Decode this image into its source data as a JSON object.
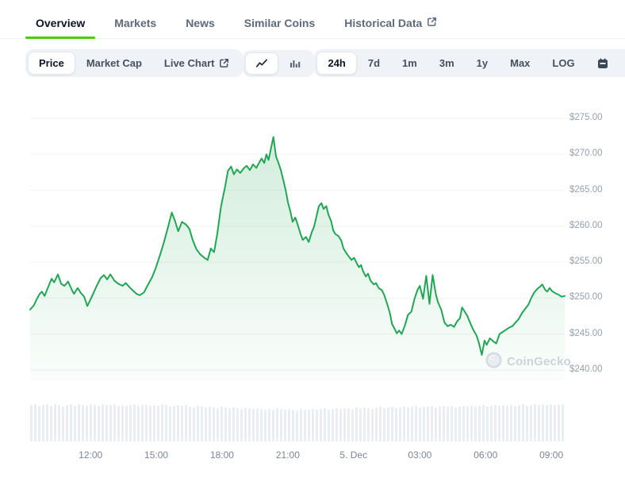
{
  "colors": {
    "accent_underline": "#4bcc00",
    "line_green": "#21a654",
    "volume_bar": "#eaeef3",
    "active_text": "#0c1322",
    "inactive_text": "#5d6a7a"
  },
  "tabs": {
    "items": [
      {
        "label": "Overview",
        "active": true
      },
      {
        "label": "Markets",
        "active": false
      },
      {
        "label": "News",
        "active": false
      },
      {
        "label": "Similar Coins",
        "active": false
      },
      {
        "label": "Historical Data",
        "active": false,
        "icon": "external-link-icon"
      }
    ]
  },
  "toolbar": {
    "metric_group": [
      {
        "label": "Price",
        "active": true
      },
      {
        "label": "Market Cap",
        "active": false
      },
      {
        "label": "Live Chart",
        "active": false,
        "icon": "external-link-icon"
      }
    ],
    "chart_type_group": [
      {
        "icon": "line-chart-icon",
        "active": true
      },
      {
        "icon": "bar-chart-icon",
        "active": false
      }
    ],
    "range_group": [
      {
        "label": "24h",
        "active": true
      },
      {
        "label": "7d",
        "active": false
      },
      {
        "label": "1m",
        "active": false
      },
      {
        "label": "3m",
        "active": false
      },
      {
        "label": "1y",
        "active": false
      },
      {
        "label": "Max",
        "active": false
      },
      {
        "label": "LOG",
        "active": false
      }
    ],
    "action_icons": [
      "calendar-icon",
      "download-icon",
      "expand-icon"
    ]
  },
  "watermark": {
    "text": "CoinGecko"
  },
  "chart_data": {
    "type": "line",
    "currency": "USD",
    "range_selected": "24h",
    "ylim": [
      240,
      275
    ],
    "grid_step": 5,
    "grid": true,
    "line_color": "#21a654",
    "y_ticks": [
      "$275.00",
      "$270.00",
      "$265.00",
      "$260.00",
      "$255.00",
      "$250.00",
      "$245.00",
      "$240.00"
    ],
    "x_ticks": [
      {
        "label": "12:00",
        "pct": 11.3
      },
      {
        "label": "15:00",
        "pct": 23.6
      },
      {
        "label": "18:00",
        "pct": 35.9
      },
      {
        "label": "21:00",
        "pct": 48.2
      },
      {
        "label": "5. Dec",
        "pct": 60.5
      },
      {
        "label": "03:00",
        "pct": 72.9
      },
      {
        "label": "06:00",
        "pct": 85.2
      },
      {
        "label": "09:00",
        "pct": 97.5
      }
    ],
    "points": [
      [
        0.0,
        248.4
      ],
      [
        0.7,
        249.0
      ],
      [
        1.2,
        249.8
      ],
      [
        1.8,
        250.6
      ],
      [
        2.2,
        250.9
      ],
      [
        2.7,
        250.3
      ],
      [
        3.3,
        251.4
      ],
      [
        4.0,
        252.7
      ],
      [
        4.5,
        252.2
      ],
      [
        5.2,
        253.3
      ],
      [
        5.8,
        252.0
      ],
      [
        6.4,
        251.7
      ],
      [
        7.1,
        252.3
      ],
      [
        7.9,
        251.0
      ],
      [
        8.2,
        250.6
      ],
      [
        8.9,
        251.4
      ],
      [
        9.5,
        250.7
      ],
      [
        10.1,
        250.2
      ],
      [
        10.7,
        248.9
      ],
      [
        11.6,
        250.3
      ],
      [
        12.5,
        251.8
      ],
      [
        13.2,
        252.8
      ],
      [
        13.8,
        253.2
      ],
      [
        14.4,
        252.6
      ],
      [
        15.0,
        253.3
      ],
      [
        15.8,
        252.4
      ],
      [
        16.5,
        252.0
      ],
      [
        17.3,
        251.7
      ],
      [
        17.9,
        252.1
      ],
      [
        18.6,
        251.5
      ],
      [
        19.3,
        251.0
      ],
      [
        19.9,
        250.6
      ],
      [
        20.5,
        250.4
      ],
      [
        21.3,
        250.8
      ],
      [
        22.0,
        251.8
      ],
      [
        22.8,
        252.9
      ],
      [
        23.5,
        254.2
      ],
      [
        24.3,
        256.0
      ],
      [
        25.0,
        257.7
      ],
      [
        25.7,
        259.6
      ],
      [
        26.5,
        261.9
      ],
      [
        27.1,
        260.7
      ],
      [
        27.7,
        259.3
      ],
      [
        28.4,
        260.6
      ],
      [
        29.2,
        260.2
      ],
      [
        29.8,
        259.6
      ],
      [
        30.4,
        258.1
      ],
      [
        31.1,
        256.8
      ],
      [
        31.8,
        256.1
      ],
      [
        32.6,
        255.6
      ],
      [
        33.2,
        255.3
      ],
      [
        33.8,
        256.9
      ],
      [
        34.4,
        256.4
      ],
      [
        35.0,
        258.9
      ],
      [
        35.7,
        262.7
      ],
      [
        36.5,
        265.6
      ],
      [
        37.0,
        267.7
      ],
      [
        37.6,
        268.3
      ],
      [
        38.1,
        267.2
      ],
      [
        38.7,
        267.9
      ],
      [
        39.3,
        267.4
      ],
      [
        39.9,
        268.0
      ],
      [
        40.5,
        268.4
      ],
      [
        41.1,
        267.8
      ],
      [
        41.7,
        268.6
      ],
      [
        42.3,
        268.1
      ],
      [
        42.9,
        268.9
      ],
      [
        43.3,
        269.4
      ],
      [
        43.8,
        268.8
      ],
      [
        44.2,
        270.0
      ],
      [
        44.6,
        269.2
      ],
      [
        45.1,
        271.0
      ],
      [
        45.5,
        272.4
      ],
      [
        46.0,
        269.7
      ],
      [
        46.4,
        268.9
      ],
      [
        46.9,
        267.8
      ],
      [
        47.3,
        266.6
      ],
      [
        47.8,
        265.0
      ],
      [
        48.2,
        263.4
      ],
      [
        48.7,
        262.0
      ],
      [
        49.1,
        260.6
      ],
      [
        49.6,
        261.2
      ],
      [
        50.1,
        260.1
      ],
      [
        50.6,
        258.9
      ],
      [
        51.0,
        258.1
      ],
      [
        51.6,
        258.5
      ],
      [
        52.1,
        257.8
      ],
      [
        52.7,
        259.2
      ],
      [
        53.1,
        259.9
      ],
      [
        53.6,
        261.5
      ],
      [
        54.0,
        262.8
      ],
      [
        54.5,
        263.2
      ],
      [
        54.9,
        262.4
      ],
      [
        55.4,
        262.8
      ],
      [
        55.8,
        261.6
      ],
      [
        56.3,
        260.7
      ],
      [
        56.7,
        259.4
      ],
      [
        57.1,
        258.9
      ],
      [
        57.7,
        258.6
      ],
      [
        58.2,
        258.0
      ],
      [
        58.6,
        256.9
      ],
      [
        59.2,
        256.2
      ],
      [
        59.7,
        255.7
      ],
      [
        60.1,
        255.3
      ],
      [
        60.6,
        255.6
      ],
      [
        61.0,
        255.0
      ],
      [
        61.5,
        254.3
      ],
      [
        61.9,
        254.6
      ],
      [
        62.3,
        253.7
      ],
      [
        62.8,
        253.0
      ],
      [
        63.2,
        253.4
      ],
      [
        63.7,
        252.4
      ],
      [
        64.3,
        251.9
      ],
      [
        64.7,
        252.1
      ],
      [
        65.2,
        251.4
      ],
      [
        65.8,
        251.1
      ],
      [
        66.2,
        250.5
      ],
      [
        66.7,
        249.4
      ],
      [
        67.3,
        247.9
      ],
      [
        67.7,
        246.4
      ],
      [
        68.2,
        245.7
      ],
      [
        68.6,
        245.1
      ],
      [
        69.0,
        245.5
      ],
      [
        69.5,
        245.0
      ],
      [
        70.1,
        246.2
      ],
      [
        70.7,
        247.7
      ],
      [
        71.3,
        248.1
      ],
      [
        71.9,
        249.9
      ],
      [
        72.5,
        251.2
      ],
      [
        72.9,
        251.7
      ],
      [
        73.5,
        249.9
      ],
      [
        74.1,
        253.1
      ],
      [
        74.7,
        249.2
      ],
      [
        75.3,
        253.2
      ],
      [
        75.9,
        250.5
      ],
      [
        76.3,
        249.4
      ],
      [
        76.9,
        248.4
      ],
      [
        77.5,
        246.6
      ],
      [
        78.1,
        246.1
      ],
      [
        78.7,
        246.3
      ],
      [
        79.3,
        246.0
      ],
      [
        79.9,
        246.8
      ],
      [
        80.4,
        247.2
      ],
      [
        80.8,
        248.7
      ],
      [
        81.4,
        248.0
      ],
      [
        81.8,
        247.5
      ],
      [
        82.4,
        246.4
      ],
      [
        82.9,
        245.6
      ],
      [
        83.5,
        244.8
      ],
      [
        83.9,
        243.9
      ],
      [
        84.5,
        242.1
      ],
      [
        85.0,
        244.1
      ],
      [
        85.4,
        243.5
      ],
      [
        86.0,
        244.4
      ],
      [
        86.6,
        244.0
      ],
      [
        87.2,
        243.7
      ],
      [
        87.8,
        245.0
      ],
      [
        88.4,
        245.3
      ],
      [
        89.0,
        245.6
      ],
      [
        89.6,
        245.9
      ],
      [
        90.2,
        246.1
      ],
      [
        90.8,
        246.6
      ],
      [
        91.4,
        247.1
      ],
      [
        92.0,
        247.9
      ],
      [
        92.6,
        248.5
      ],
      [
        93.2,
        249.1
      ],
      [
        93.8,
        250.1
      ],
      [
        94.3,
        250.8
      ],
      [
        94.9,
        251.3
      ],
      [
        95.4,
        251.6
      ],
      [
        95.8,
        251.9
      ],
      [
        96.3,
        251.2
      ],
      [
        96.7,
        250.9
      ],
      [
        97.2,
        251.4
      ],
      [
        97.6,
        251.0
      ],
      [
        98.2,
        250.7
      ],
      [
        98.8,
        250.5
      ],
      [
        99.4,
        250.2
      ],
      [
        100.0,
        250.3
      ]
    ],
    "volume_rel": [
      0.95,
      0.97,
      0.93,
      0.96,
      0.98,
      0.94,
      0.97,
      0.95,
      0.92,
      0.96,
      0.97,
      0.94,
      0.98,
      0.95,
      0.93,
      0.97,
      0.96,
      0.94,
      0.97,
      0.95,
      0.96,
      0.98,
      0.94,
      0.96,
      0.93,
      0.95,
      0.97,
      0.94,
      0.96,
      0.95,
      0.93,
      0.96,
      0.94,
      0.97,
      0.95,
      0.92,
      0.94,
      0.96,
      0.93,
      0.95,
      0.92,
      0.9,
      0.93,
      0.91,
      0.89,
      0.92,
      0.9,
      0.88,
      0.91,
      0.89,
      0.87,
      0.9,
      0.88,
      0.86,
      0.89,
      0.87,
      0.85,
      0.88,
      0.86,
      0.84,
      0.86,
      0.84,
      0.87,
      0.85,
      0.83,
      0.86,
      0.84,
      0.82,
      0.85,
      0.83,
      0.84,
      0.86,
      0.83,
      0.85,
      0.87,
      0.84,
      0.86,
      0.88,
      0.85,
      0.87,
      0.88,
      0.86,
      0.89,
      0.87,
      0.9,
      0.88,
      0.86,
      0.89,
      0.91,
      0.88,
      0.89,
      0.91,
      0.88,
      0.9,
      0.92,
      0.89,
      0.91,
      0.93,
      0.9,
      0.92,
      0.91,
      0.93,
      0.9,
      0.92,
      0.94,
      0.91,
      0.93,
      0.9,
      0.92,
      0.94,
      0.92,
      0.94,
      0.91,
      0.93,
      0.95,
      0.92,
      0.94,
      0.96,
      0.93,
      0.95,
      0.94,
      0.96,
      0.93,
      0.95,
      0.97,
      0.94,
      0.96,
      0.98,
      0.95,
      0.97,
      0.96,
      0.98,
      0.95,
      0.97,
      0.99
    ]
  }
}
